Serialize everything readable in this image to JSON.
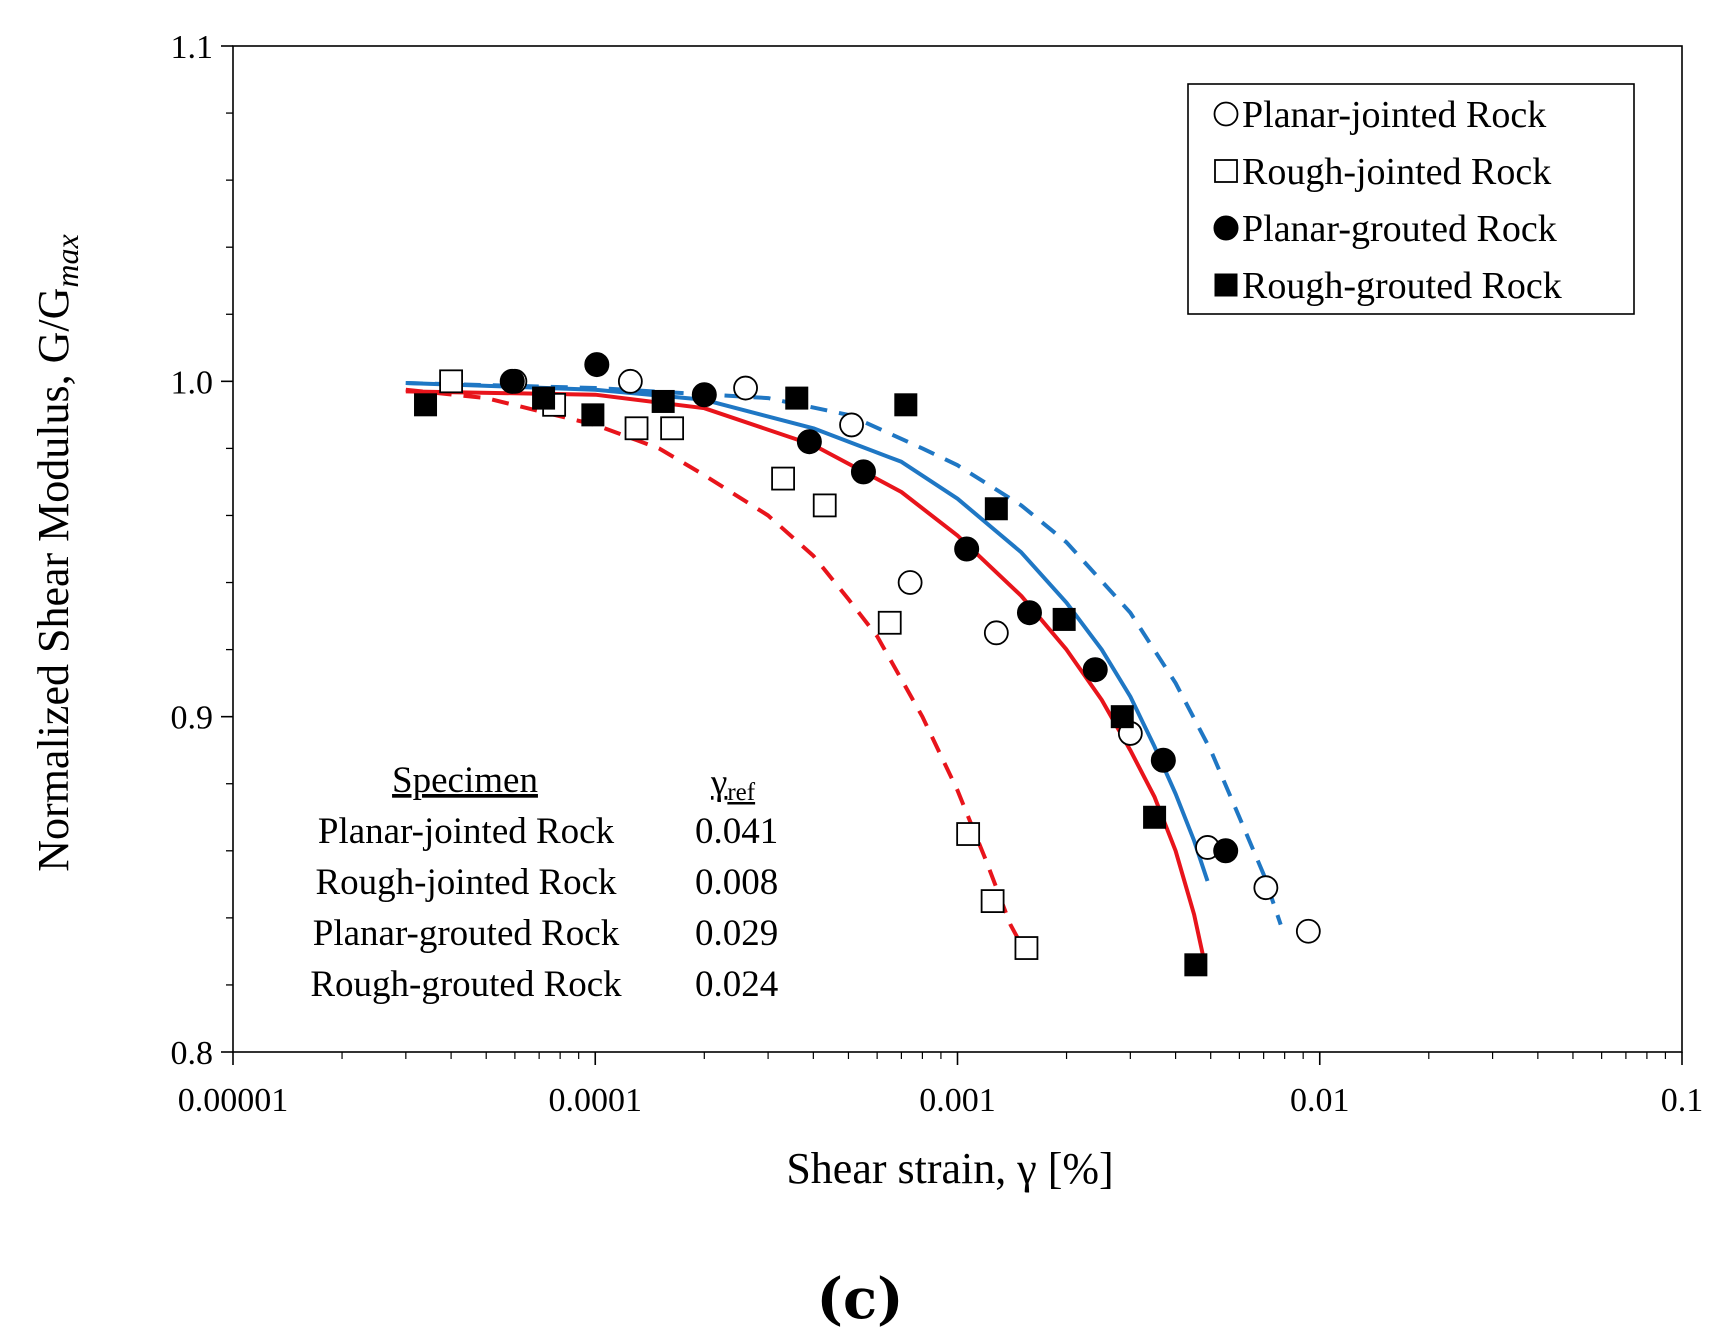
{
  "chart_data": {
    "type": "scatter",
    "panel_label": "(c)",
    "xlabel": "Shear strain, γ [%]",
    "ylabel": "Normalized Shear Modulus, G/G",
    "ylabel_sub": "max",
    "x_scale": "log",
    "xlim": [
      1e-05,
      0.1
    ],
    "ylim": [
      0.8,
      1.1
    ],
    "x_ticks": [
      1e-05,
      0.0001,
      0.001,
      0.01,
      0.1
    ],
    "x_tick_labels": [
      "0.00001",
      "0.0001",
      "0.001",
      "0.01",
      "0.1"
    ],
    "y_ticks": [
      0.8,
      0.9,
      1.0,
      1.1
    ],
    "y_tick_labels": [
      "0.8",
      "0.9",
      "1.0",
      "1.1"
    ],
    "grid": false,
    "legend_position": "top-right",
    "series": [
      {
        "name": "Planar-jointed Rock",
        "marker": "circle-open",
        "points": [
          [
            6e-05,
            1.0
          ],
          [
            0.000125,
            1.0
          ],
          [
            0.00026,
            0.998
          ],
          [
            0.00051,
            0.987
          ],
          [
            0.00074,
            0.94
          ],
          [
            0.00128,
            0.925
          ],
          [
            0.003,
            0.895
          ],
          [
            0.0049,
            0.861
          ],
          [
            0.0071,
            0.849
          ],
          [
            0.0093,
            0.836
          ]
        ]
      },
      {
        "name": "Rough-jointed Rock",
        "marker": "square-open",
        "points": [
          [
            4e-05,
            1.0
          ],
          [
            7.7e-05,
            0.993
          ],
          [
            0.00013,
            0.986
          ],
          [
            0.000163,
            0.986
          ],
          [
            0.00033,
            0.971
          ],
          [
            0.00043,
            0.963
          ],
          [
            0.00065,
            0.928
          ],
          [
            0.00107,
            0.865
          ],
          [
            0.00125,
            0.845
          ],
          [
            0.00155,
            0.831
          ]
        ]
      },
      {
        "name": "Planar-grouted Rock",
        "marker": "circle-filled",
        "points": [
          [
            5.9e-05,
            1.0
          ],
          [
            0.000101,
            1.005
          ],
          [
            0.0002,
            0.996
          ],
          [
            0.00039,
            0.982
          ],
          [
            0.00055,
            0.973
          ],
          [
            0.00106,
            0.95
          ],
          [
            0.00158,
            0.931
          ],
          [
            0.0024,
            0.914
          ],
          [
            0.0037,
            0.887
          ],
          [
            0.0055,
            0.86
          ]
        ]
      },
      {
        "name": "Rough-grouted Rock",
        "marker": "square-filled",
        "points": [
          [
            3.4e-05,
            0.993
          ],
          [
            7.2e-05,
            0.995
          ],
          [
            9.85e-05,
            0.99
          ],
          [
            0.000154,
            0.994
          ],
          [
            0.00036,
            0.995
          ],
          [
            0.00072,
            0.993
          ],
          [
            0.00128,
            0.962
          ],
          [
            0.00197,
            0.929
          ],
          [
            0.00285,
            0.9
          ],
          [
            0.0035,
            0.87
          ],
          [
            0.00455,
            0.826
          ]
        ]
      }
    ],
    "fit_curves": [
      {
        "specimen": "Planar-jointed Rock",
        "gamma_ref": 0.041,
        "x_range": [
          3e-05,
          0.0049
        ],
        "color": "#1f77c4",
        "dash": "solid"
      },
      {
        "specimen": "Rough-jointed Rock",
        "gamma_ref": 0.008,
        "x_range": [
          3e-05,
          0.0015
        ],
        "color": "#e8141b",
        "dash": "dashed"
      },
      {
        "specimen": "Planar-grouted Rock",
        "gamma_ref": 0.029,
        "x_range": [
          3e-05,
          0.0048
        ],
        "color": "#e8141b",
        "dash": "solid"
      },
      {
        "specimen": "Rough-grouted Rock",
        "gamma_ref": 0.024,
        "x_range": [
          3e-05,
          0.0078
        ],
        "color": "#1f77c4",
        "dash": "dashed"
      }
    ],
    "table": {
      "col1_header": "Specimen",
      "col2_header_main": "γ",
      "col2_header_sub": "ref",
      "rows": [
        {
          "specimen": "Planar-jointed Rock",
          "value": "0.041"
        },
        {
          "specimen": "Rough-jointed Rock",
          "value": "0.008"
        },
        {
          "specimen": "Planar-grouted Rock",
          "value": "0.029"
        },
        {
          "specimen": "Rough-grouted Rock",
          "value": "0.024"
        }
      ]
    }
  }
}
